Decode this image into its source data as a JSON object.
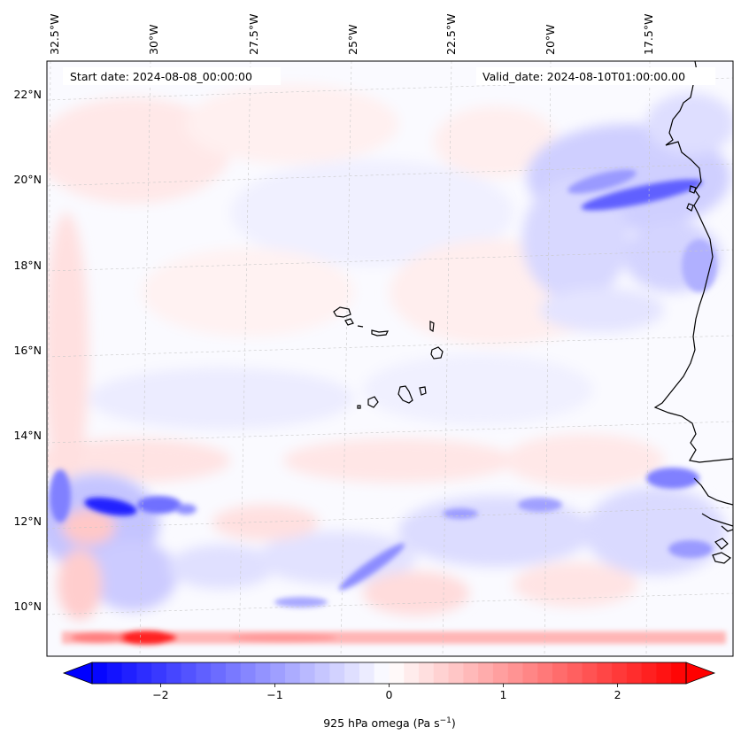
{
  "map": {
    "start_label": "Start date: 2024-08-08_00:00:00",
    "valid_label": "Valid_date: 2024-08-10T01:00:00.00",
    "lon_labels": [
      "32.5°W",
      "30°W",
      "27.5°W",
      "25°W",
      "22.5°W",
      "20°W",
      "17.5°W"
    ],
    "lat_labels": [
      "22°N",
      "20°N",
      "18°N",
      "16°N",
      "14°N",
      "12°N",
      "10°N"
    ],
    "field": {
      "variable": "925 hPa omega",
      "units": "Pa s⁻¹",
      "negative_color": "#0000ff",
      "positive_color": "#ff0000",
      "zero_color": "#ffffff",
      "coastline_color": "#000000"
    }
  },
  "colorbar": {
    "label": "925 hPa omega (Pa s",
    "label_sup": "−1",
    "label_tail": ")",
    "range": [
      -2.6,
      2.6
    ],
    "ticks": [
      -2,
      -1,
      0,
      1,
      2
    ],
    "tick_labels": [
      "−2",
      "−1",
      "0",
      "1",
      "2"
    ],
    "levels": 40,
    "extend": "both"
  }
}
